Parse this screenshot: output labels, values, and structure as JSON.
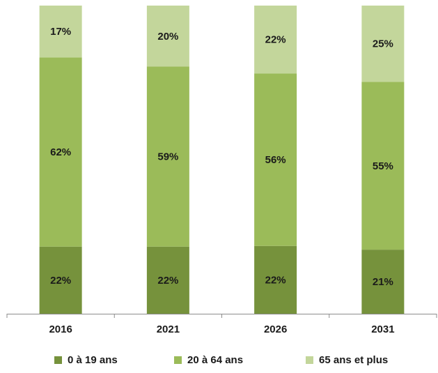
{
  "chart_data": {
    "type": "bar",
    "stacked": true,
    "categories": [
      "2016",
      "2021",
      "2026",
      "2031"
    ],
    "series": [
      {
        "name": "0 à 19 ans",
        "values": [
          22,
          22,
          22,
          21
        ],
        "labels": [
          "22%",
          "22%",
          "22%",
          "21%"
        ],
        "color": "#76923c"
      },
      {
        "name": "20 à 64 ans",
        "values": [
          62,
          59,
          56,
          55
        ],
        "labels": [
          "62%",
          "59%",
          "56%",
          "55%"
        ],
        "color": "#9bbb59"
      },
      {
        "name": "65 ans et plus",
        "values": [
          17,
          20,
          22,
          25
        ],
        "labels": [
          "17%",
          "20%",
          "22%",
          "25%"
        ],
        "color": "#c3d69b"
      }
    ],
    "ylim": [
      0,
      100
    ],
    "legend_position": "bottom",
    "grid": false
  }
}
